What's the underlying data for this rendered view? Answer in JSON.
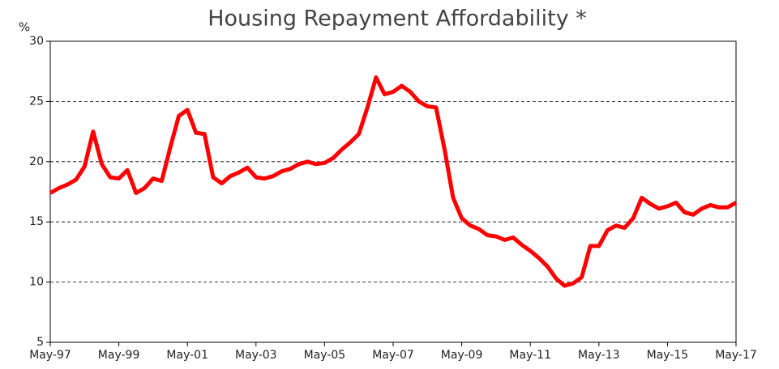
{
  "chart_data": {
    "type": "line",
    "title": "Housing Repayment Affordability *",
    "y_label": "%",
    "x": [
      "May-97",
      "Aug-97",
      "Nov-97",
      "Feb-98",
      "May-98",
      "Aug-98",
      "Nov-98",
      "Feb-99",
      "May-99",
      "Aug-99",
      "Nov-99",
      "Feb-00",
      "May-00",
      "Aug-00",
      "Nov-00",
      "Feb-01",
      "May-01",
      "Aug-01",
      "Nov-01",
      "Feb-02",
      "May-02",
      "Aug-02",
      "Nov-02",
      "Feb-03",
      "May-03",
      "Aug-03",
      "Nov-03",
      "Feb-04",
      "May-04",
      "Aug-04",
      "Nov-04",
      "Feb-05",
      "May-05",
      "Aug-05",
      "Nov-05",
      "Feb-06",
      "May-06",
      "Aug-06",
      "Nov-06",
      "Feb-07",
      "May-07",
      "Aug-07",
      "Nov-07",
      "Feb-08",
      "May-08",
      "Aug-08",
      "Nov-08",
      "Feb-09",
      "May-09",
      "Aug-09",
      "Nov-09",
      "Feb-10",
      "May-10",
      "Aug-10",
      "Nov-10",
      "Feb-11",
      "May-11",
      "Aug-11",
      "Nov-11",
      "Feb-12",
      "May-12",
      "Aug-12",
      "Nov-12",
      "Feb-13",
      "May-13",
      "Aug-13",
      "Nov-13",
      "Feb-14",
      "May-14",
      "Aug-14",
      "Nov-14",
      "Feb-15",
      "May-15",
      "Aug-15",
      "Nov-15",
      "Feb-16",
      "May-16",
      "Aug-16",
      "Nov-16",
      "Feb-17",
      "May-17"
    ],
    "series": [
      {
        "name": "Housing Repayment Affordability",
        "color": "#ff0000",
        "values": [
          17.4,
          17.8,
          18.1,
          18.5,
          19.6,
          22.5,
          19.8,
          18.7,
          18.6,
          19.3,
          17.4,
          17.8,
          18.6,
          18.4,
          21.2,
          23.8,
          24.3,
          22.4,
          22.3,
          18.7,
          18.2,
          18.8,
          19.1,
          19.5,
          18.7,
          18.6,
          18.8,
          19.2,
          19.4,
          19.8,
          20.0,
          19.8,
          19.9,
          20.3,
          21.0,
          21.6,
          22.3,
          24.5,
          27.0,
          25.6,
          25.8,
          26.3,
          25.8,
          25.0,
          24.6,
          24.5,
          21.0,
          17.0,
          15.3,
          14.7,
          14.4,
          13.9,
          13.8,
          13.5,
          13.7,
          13.1,
          12.6,
          12.0,
          11.3,
          10.3,
          9.7,
          9.9,
          10.4,
          13.0,
          13.0,
          14.3,
          14.7,
          14.5,
          15.3,
          17.0,
          16.5,
          16.1,
          16.3,
          16.6,
          15.8,
          15.6,
          16.1,
          16.4,
          16.2,
          16.2,
          16.6
        ]
      }
    ],
    "ylim": [
      5,
      30
    ],
    "yticks": [
      5,
      10,
      15,
      20,
      25,
      30
    ],
    "xtick_every": 8,
    "grid": true
  }
}
